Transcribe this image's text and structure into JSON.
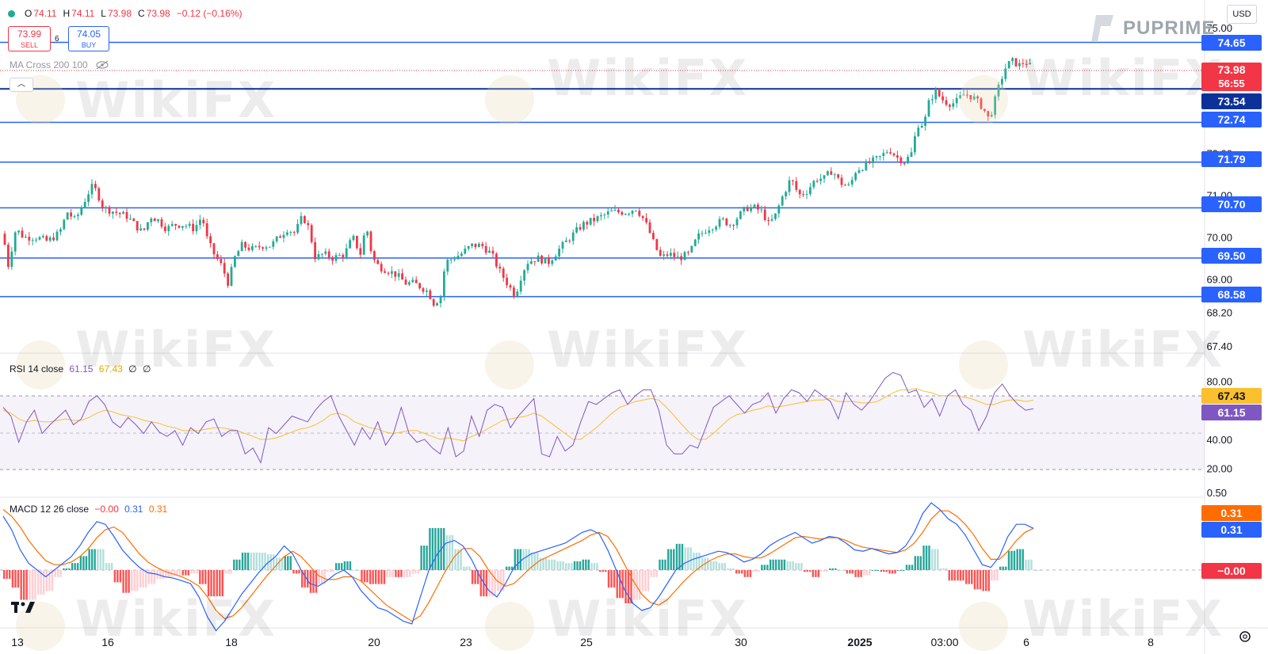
{
  "header": {
    "ohlc": [
      {
        "label": "O",
        "value": "74.11"
      },
      {
        "label": "H",
        "value": "74.11"
      },
      {
        "label": "L",
        "value": "73.98"
      },
      {
        "label": "C",
        "value": "73.98"
      }
    ],
    "change": "−0.12 (−0.16%)",
    "sell": {
      "price": "73.99",
      "label": "SELL"
    },
    "buy": {
      "price": "74.05",
      "label": "BUY"
    },
    "spread": "6",
    "ma_study": "MA Cross 200 100",
    "currency": "USD",
    "brand": "PUPRIME"
  },
  "watermark": "WikiFX",
  "colors": {
    "up": "#22ab94",
    "down": "#f23645",
    "level_line": "#2962ff",
    "rsi": "#7e57c2",
    "rsi_ma": "#fbc02d",
    "macd": "#2962ff",
    "signal": "#ff6d00",
    "label_dark": "#0c3299",
    "label_blue": "#2962ff"
  },
  "chart_data": [
    {
      "type": "candlestick",
      "name": "price",
      "y_range": [
        67.4,
        75.0
      ],
      "y_ticks": [
        "75.00",
        "72.00",
        "71.00",
        "70.00",
        "69.00",
        "68.20",
        "67.40"
      ],
      "x_ticks": [
        "13",
        "16",
        "18",
        "20",
        "23",
        "25",
        "30",
        "2025",
        "03:00",
        "6",
        "8"
      ],
      "levels": [
        74.65,
        73.54,
        72.74,
        71.79,
        70.7,
        69.5,
        68.58
      ],
      "level_labels": [
        "74.65",
        "73.54",
        "72.74",
        "71.79",
        "70.70",
        "69.50",
        "68.58"
      ],
      "last_price": {
        "value": "73.98",
        "countdown": "56:55"
      },
      "close_path": [
        [
          0,
          70.6
        ],
        [
          10,
          69.3
        ],
        [
          20,
          70.2
        ],
        [
          30,
          70.0
        ],
        [
          45,
          70.0
        ],
        [
          60,
          69.9
        ],
        [
          75,
          70.1
        ],
        [
          85,
          70.6
        ],
        [
          95,
          70.4
        ],
        [
          105,
          70.8
        ],
        [
          115,
          71.2
        ],
        [
          122,
          71.1
        ],
        [
          130,
          70.7
        ],
        [
          145,
          70.6
        ],
        [
          160,
          70.5
        ],
        [
          170,
          70.3
        ],
        [
          180,
          70.1
        ],
        [
          190,
          70.5
        ],
        [
          200,
          70.4
        ],
        [
          210,
          70.2
        ],
        [
          220,
          70.3
        ],
        [
          232,
          70.3
        ],
        [
          245,
          70.2
        ],
        [
          255,
          70.5
        ],
        [
          262,
          69.9
        ],
        [
          270,
          69.6
        ],
        [
          280,
          69.3
        ],
        [
          288,
          68.9
        ],
        [
          296,
          69.5
        ],
        [
          305,
          69.8
        ],
        [
          320,
          69.7
        ],
        [
          330,
          69.8
        ],
        [
          342,
          69.8
        ],
        [
          352,
          70.0
        ],
        [
          362,
          70.2
        ],
        [
          372,
          70.1
        ],
        [
          382,
          70.5
        ],
        [
          390,
          70.2
        ],
        [
          398,
          69.5
        ],
        [
          408,
          69.6
        ],
        [
          420,
          69.5
        ],
        [
          435,
          69.6
        ],
        [
          445,
          70.0
        ],
        [
          455,
          69.6
        ],
        [
          462,
          70.3
        ],
        [
          470,
          69.5
        ],
        [
          478,
          69.3
        ],
        [
          490,
          69.2
        ],
        [
          500,
          69.1
        ],
        [
          512,
          68.9
        ],
        [
          522,
          68.9
        ],
        [
          532,
          68.8
        ],
        [
          540,
          68.7
        ],
        [
          548,
          68.4
        ],
        [
          556,
          68.6
        ],
        [
          562,
          69.4
        ],
        [
          572,
          69.5
        ],
        [
          582,
          69.6
        ],
        [
          595,
          69.8
        ],
        [
          608,
          69.8
        ],
        [
          620,
          69.6
        ],
        [
          630,
          69.2
        ],
        [
          640,
          68.9
        ],
        [
          650,
          68.6
        ],
        [
          658,
          69.1
        ],
        [
          665,
          69.4
        ],
        [
          678,
          69.5
        ],
        [
          692,
          69.4
        ],
        [
          705,
          69.7
        ],
        [
          715,
          69.9
        ],
        [
          725,
          70.1
        ],
        [
          735,
          70.3
        ],
        [
          748,
          70.4
        ],
        [
          760,
          70.5
        ],
        [
          770,
          70.6
        ],
        [
          782,
          70.6
        ],
        [
          792,
          70.6
        ],
        [
          802,
          70.7
        ],
        [
          810,
          70.5
        ],
        [
          818,
          70.2
        ],
        [
          826,
          69.8
        ],
        [
          834,
          69.5
        ],
        [
          844,
          69.6
        ],
        [
          856,
          69.5
        ],
        [
          870,
          69.6
        ],
        [
          880,
          70.0
        ],
        [
          892,
          70.2
        ],
        [
          902,
          70.3
        ],
        [
          912,
          70.4
        ],
        [
          922,
          70.3
        ],
        [
          932,
          70.5
        ],
        [
          942,
          70.7
        ],
        [
          952,
          70.7
        ],
        [
          962,
          70.6
        ],
        [
          970,
          70.3
        ],
        [
          978,
          70.5
        ],
        [
          988,
          71.0
        ],
        [
          998,
          71.4
        ],
        [
          1008,
          71.0
        ],
        [
          1018,
          71.1
        ],
        [
          1030,
          71.4
        ],
        [
          1040,
          71.4
        ],
        [
          1050,
          71.6
        ],
        [
          1060,
          71.3
        ],
        [
          1072,
          71.2
        ],
        [
          1080,
          71.6
        ],
        [
          1090,
          71.7
        ],
        [
          1100,
          71.8
        ],
        [
          1110,
          71.9
        ],
        [
          1122,
          72.1
        ],
        [
          1132,
          71.9
        ],
        [
          1142,
          71.8
        ],
        [
          1150,
          72.0
        ],
        [
          1158,
          72.7
        ],
        [
          1166,
          72.7
        ],
        [
          1172,
          73.2
        ],
        [
          1180,
          73.5
        ],
        [
          1188,
          73.3
        ],
        [
          1196,
          73.2
        ],
        [
          1205,
          73.2
        ],
        [
          1215,
          73.4
        ],
        [
          1222,
          73.4
        ],
        [
          1230,
          73.3
        ],
        [
          1240,
          73.1
        ],
        [
          1248,
          72.8
        ],
        [
          1256,
          73.3
        ],
        [
          1262,
          73.7
        ],
        [
          1270,
          74.1
        ],
        [
          1278,
          74.2
        ],
        [
          1286,
          74.1
        ],
        [
          1294,
          74.2
        ],
        [
          1304,
          73.98
        ]
      ]
    },
    {
      "type": "line",
      "name": "RSI 14 close",
      "title": "RSI 14 close",
      "values_shown": [
        "61.15",
        "67.43",
        "∅",
        "∅"
      ],
      "y_ticks": [
        "80.00",
        "40.00",
        "20.00"
      ],
      "band": [
        30,
        70
      ],
      "current": {
        "rsi": "61.15",
        "ma": "67.43"
      },
      "series": [
        {
          "name": "RSI",
          "values": [
            62,
            56,
            38,
            52,
            60,
            44,
            50,
            55,
            60,
            50,
            54,
            66,
            70,
            64,
            52,
            48,
            55,
            50,
            44,
            52,
            45,
            42,
            46,
            36,
            48,
            44,
            52,
            54,
            42,
            46,
            46,
            30,
            34,
            24,
            48,
            44,
            50,
            56,
            54,
            52,
            60,
            66,
            70,
            56,
            46,
            36,
            48,
            40,
            52,
            36,
            44,
            62,
            44,
            38,
            40,
            34,
            30,
            48,
            28,
            32,
            56,
            42,
            60,
            64,
            62,
            48,
            56,
            62,
            68,
            30,
            28,
            42,
            32,
            36,
            52,
            66,
            64,
            68,
            72,
            74,
            64,
            70,
            74,
            74,
            60,
            36,
            30,
            30,
            36,
            34,
            48,
            62,
            66,
            70,
            64,
            58,
            64,
            66,
            72,
            58,
            68,
            74,
            72,
            66,
            74,
            70,
            66,
            54,
            72,
            64,
            60,
            66,
            74,
            82,
            86,
            84,
            72,
            74,
            62,
            68,
            56,
            70,
            74,
            64,
            60,
            46,
            56,
            72,
            78,
            70,
            64,
            60,
            61
          ]
        },
        {
          "name": "RSI MA",
          "values": [
            60,
            58,
            54,
            52,
            53,
            52,
            52,
            53,
            54,
            53,
            53,
            55,
            58,
            60,
            59,
            57,
            56,
            55,
            53,
            52,
            51,
            49,
            48,
            46,
            46,
            46,
            47,
            48,
            48,
            47,
            46,
            44,
            42,
            40,
            40,
            41,
            43,
            45,
            47,
            48,
            50,
            53,
            57,
            58,
            56,
            52,
            50,
            48,
            47,
            45,
            44,
            45,
            46,
            46,
            44,
            42,
            40,
            41,
            40,
            39,
            42,
            44,
            47,
            50,
            53,
            54,
            55,
            56,
            58,
            56,
            52,
            48,
            44,
            40,
            40,
            44,
            48,
            53,
            58,
            62,
            64,
            66,
            67,
            68,
            67,
            62,
            56,
            50,
            44,
            40,
            40,
            44,
            49,
            54,
            57,
            58,
            60,
            61,
            63,
            62,
            63,
            64,
            65,
            66,
            67,
            67,
            68,
            66,
            66,
            66,
            65,
            65,
            66,
            69,
            72,
            74,
            74,
            75,
            73,
            72,
            70,
            70,
            70,
            69,
            68,
            66,
            64,
            64,
            66,
            67,
            67,
            66,
            67
          ]
        }
      ]
    },
    {
      "type": "line",
      "name": "MACD 12 26 close",
      "title": "MACD 12 26 close",
      "values_shown": [
        "−0.00",
        "0.31",
        "0.31"
      ],
      "y_ticks": [
        "0.50"
      ],
      "current": {
        "macd": "0.31",
        "signal": "0.31",
        "hist": "−0.00"
      },
      "series": [
        {
          "name": "MACD",
          "values": [
            0.4,
            0.3,
            0.15,
            0.05,
            0.0,
            -0.05,
            0.0,
            0.05,
            0.1,
            0.18,
            0.28,
            0.36,
            0.34,
            0.25,
            0.15,
            0.08,
            0.02,
            -0.02,
            -0.03,
            -0.05,
            -0.06,
            -0.08,
            -0.1,
            -0.2,
            -0.35,
            -0.45,
            -0.38,
            -0.28,
            -0.18,
            -0.1,
            -0.02,
            0.05,
            0.1,
            0.18,
            0.12,
            0.0,
            -0.1,
            -0.12,
            -0.08,
            -0.03,
            0.0,
            -0.05,
            -0.15,
            -0.22,
            -0.28,
            -0.3,
            -0.34,
            -0.38,
            -0.4,
            -0.2,
            0.0,
            0.12,
            0.2,
            0.22,
            0.18,
            0.08,
            -0.05,
            -0.15,
            -0.2,
            -0.1,
            0.02,
            0.08,
            0.12,
            0.14,
            0.16,
            0.18,
            0.2,
            0.24,
            0.28,
            0.3,
            0.27,
            0.15,
            0.0,
            -0.15,
            -0.25,
            -0.3,
            -0.28,
            -0.2,
            -0.1,
            0.0,
            0.05,
            0.08,
            0.1,
            0.12,
            0.14,
            0.13,
            0.1,
            0.06,
            0.08,
            0.12,
            0.18,
            0.22,
            0.25,
            0.28,
            0.24,
            0.2,
            0.22,
            0.25,
            0.24,
            0.2,
            0.15,
            0.14,
            0.16,
            0.14,
            0.12,
            0.13,
            0.18,
            0.28,
            0.42,
            0.5,
            0.45,
            0.38,
            0.34,
            0.26,
            0.15,
            0.04,
            0.02,
            0.1,
            0.25,
            0.34,
            0.34,
            0.31
          ]
        },
        {
          "name": "Signal",
          "values": [
            0.45,
            0.4,
            0.32,
            0.22,
            0.14,
            0.07,
            0.04,
            0.04,
            0.06,
            0.1,
            0.16,
            0.24,
            0.3,
            0.32,
            0.28,
            0.2,
            0.12,
            0.06,
            0.02,
            -0.01,
            -0.03,
            -0.05,
            -0.08,
            -0.12,
            -0.2,
            -0.3,
            -0.36,
            -0.34,
            -0.28,
            -0.2,
            -0.12,
            -0.04,
            0.03,
            0.1,
            0.14,
            0.1,
            0.03,
            -0.04,
            -0.07,
            -0.07,
            -0.05,
            -0.05,
            -0.08,
            -0.14,
            -0.2,
            -0.26,
            -0.3,
            -0.34,
            -0.38,
            -0.34,
            -0.24,
            -0.12,
            0.0,
            0.1,
            0.16,
            0.16,
            0.1,
            0.0,
            -0.08,
            -0.12,
            -0.1,
            -0.04,
            0.02,
            0.07,
            0.1,
            0.13,
            0.16,
            0.19,
            0.22,
            0.26,
            0.28,
            0.25,
            0.16,
            0.04,
            -0.08,
            -0.18,
            -0.24,
            -0.26,
            -0.22,
            -0.15,
            -0.08,
            -0.02,
            0.03,
            0.07,
            0.1,
            0.12,
            0.12,
            0.1,
            0.09,
            0.09,
            0.12,
            0.16,
            0.2,
            0.24,
            0.25,
            0.24,
            0.23,
            0.24,
            0.24,
            0.22,
            0.19,
            0.17,
            0.16,
            0.15,
            0.14,
            0.13,
            0.15,
            0.2,
            0.28,
            0.38,
            0.44,
            0.44,
            0.4,
            0.34,
            0.26,
            0.16,
            0.08,
            0.08,
            0.14,
            0.22,
            0.28,
            0.31
          ]
        }
      ]
    }
  ]
}
